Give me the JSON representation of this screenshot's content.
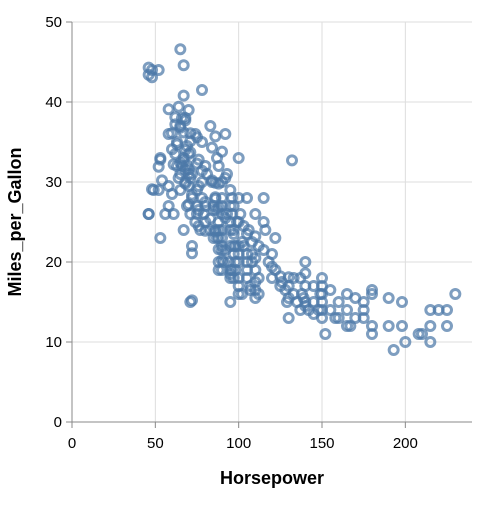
{
  "chart_data": {
    "type": "scatter",
    "title": "",
    "xlabel": "Horsepower",
    "ylabel": "Miles_per_Gallon",
    "xlim": [
      0,
      240
    ],
    "ylim": [
      0,
      50
    ],
    "x_ticks": [
      0,
      50,
      100,
      150,
      200
    ],
    "y_ticks": [
      0,
      10,
      20,
      30,
      40,
      50
    ],
    "x_tick_labels": [
      "0",
      "50",
      "100",
      "150",
      "200"
    ],
    "y_tick_labels": [
      "0",
      "10",
      "20",
      "30",
      "40",
      "50"
    ],
    "grid": true,
    "legend": "none",
    "colors": {
      "point": "#4c78a8",
      "grid": "#dddddd",
      "axis": "#888888"
    },
    "points": [
      [
        46,
        26
      ],
      [
        46,
        26
      ],
      [
        46,
        43.4
      ],
      [
        46,
        44.3
      ],
      [
        48,
        29.1
      ],
      [
        48,
        43.1
      ],
      [
        48,
        44.0
      ],
      [
        49,
        29.0
      ],
      [
        52,
        29.0
      ],
      [
        52,
        31.9
      ],
      [
        52,
        44.0
      ],
      [
        53,
        33.0
      ],
      [
        53,
        23.0
      ],
      [
        53,
        32.8
      ],
      [
        54,
        30.2
      ],
      [
        58,
        29.5
      ],
      [
        58,
        36.0
      ],
      [
        58,
        39.1
      ],
      [
        60,
        36.1
      ],
      [
        60,
        34.1
      ],
      [
        61,
        32.2
      ],
      [
        61,
        26.0
      ],
      [
        62,
        37.2
      ],
      [
        62,
        38.1
      ],
      [
        63,
        32.0
      ],
      [
        63,
        34.7
      ],
      [
        63,
        35.0
      ],
      [
        64,
        39.4
      ],
      [
        65,
        31.0
      ],
      [
        65,
        32.4
      ],
      [
        65,
        36.8
      ],
      [
        65,
        37.0
      ],
      [
        65,
        46.6
      ],
      [
        65,
        29.0
      ],
      [
        66,
        32.0
      ],
      [
        67,
        33.0
      ],
      [
        67,
        36.2
      ],
      [
        67,
        40.8
      ],
      [
        67,
        44.6
      ],
      [
        67,
        32.7
      ],
      [
        67,
        24.0
      ],
      [
        68,
        34.0
      ],
      [
        68,
        37.7
      ],
      [
        68,
        30.0
      ],
      [
        68,
        38.0
      ],
      [
        68,
        29.8
      ],
      [
        68,
        31.5
      ],
      [
        69,
        27.0
      ],
      [
        69,
        32.1
      ],
      [
        69,
        34.5
      ],
      [
        70,
        31.0
      ],
      [
        70,
        31.6
      ],
      [
        70,
        29.5
      ],
      [
        70,
        33.5
      ],
      [
        70,
        27.2
      ],
      [
        71,
        26.0
      ],
      [
        71,
        30.5
      ],
      [
        71,
        33.7
      ],
      [
        71,
        35.1
      ],
      [
        71,
        36.1
      ],
      [
        72,
        28.0
      ],
      [
        72,
        31.0
      ],
      [
        72,
        28.4
      ],
      [
        72,
        21.1
      ],
      [
        72,
        22.0
      ],
      [
        74,
        36.0
      ],
      [
        74,
        25.0
      ],
      [
        75,
        26.0
      ],
      [
        75,
        29.0
      ],
      [
        75,
        32.3
      ],
      [
        75,
        27.0
      ],
      [
        76,
        29.5
      ],
      [
        76,
        26.5
      ],
      [
        76,
        24.5
      ],
      [
        77,
        24.0
      ],
      [
        78,
        28.0
      ],
      [
        78,
        30.0
      ],
      [
        78,
        41.5
      ],
      [
        78,
        35.0
      ],
      [
        79,
        26.0
      ],
      [
        80,
        25.0
      ],
      [
        80,
        27.0
      ],
      [
        80,
        32.0
      ],
      [
        80,
        27.5
      ],
      [
        81,
        31.0
      ],
      [
        83,
        24.0
      ],
      [
        83,
        25.4
      ],
      [
        84,
        30.0
      ],
      [
        84,
        34.3
      ],
      [
        85,
        23.0
      ],
      [
        85,
        27.0
      ],
      [
        86,
        27.9
      ],
      [
        86,
        28.1
      ],
      [
        86,
        23.8
      ],
      [
        86,
        24.0
      ],
      [
        86,
        29.9
      ],
      [
        87,
        23.0
      ],
      [
        87,
        26.5
      ],
      [
        88,
        24.0
      ],
      [
        88,
        19.0
      ],
      [
        88,
        25.0
      ],
      [
        88,
        23.0
      ],
      [
        88,
        20.0
      ],
      [
        88,
        21.6
      ],
      [
        88,
        26.8
      ],
      [
        88,
        29.8
      ],
      [
        90,
        19.0
      ],
      [
        90,
        27.0
      ],
      [
        90,
        23.0
      ],
      [
        90,
        28.0
      ],
      [
        90,
        24.0
      ],
      [
        90,
        22.0
      ],
      [
        90,
        26.0
      ],
      [
        90,
        33.8
      ],
      [
        90,
        20.2
      ],
      [
        91,
        20.0
      ],
      [
        92,
        21.5
      ],
      [
        92,
        25.5
      ],
      [
        93,
        26.0
      ],
      [
        94,
        20.0
      ],
      [
        95,
        24.0
      ],
      [
        95,
        27.0
      ],
      [
        95,
        22.0
      ],
      [
        95,
        18.0
      ],
      [
        95,
        19.0
      ],
      [
        95,
        25.0
      ],
      [
        95,
        15.0
      ],
      [
        96,
        26.0
      ],
      [
        96,
        19.0
      ],
      [
        97,
        22.0
      ],
      [
        97,
        23.5
      ],
      [
        97,
        21.0
      ],
      [
        97,
        24.0
      ],
      [
        97,
        18.0
      ],
      [
        97,
        27.0
      ],
      [
        98,
        20.0
      ],
      [
        98,
        19.0
      ],
      [
        100,
        18.0
      ],
      [
        100,
        20.0
      ],
      [
        100,
        16.0
      ],
      [
        100,
        21.0
      ],
      [
        100,
        22.0
      ],
      [
        100,
        28.0
      ],
      [
        100,
        33.0
      ],
      [
        102,
        16.0
      ],
      [
        103,
        24.5
      ],
      [
        105,
        18.0
      ],
      [
        105,
        19.0
      ],
      [
        105,
        20.0
      ],
      [
        105,
        23.5
      ],
      [
        105,
        28.0
      ],
      [
        107,
        17.0
      ],
      [
        107,
        16.5
      ],
      [
        108,
        21.0
      ],
      [
        108,
        22.5
      ],
      [
        110,
        19.0
      ],
      [
        110,
        20.5
      ],
      [
        110,
        23.2
      ],
      [
        110,
        15.5
      ],
      [
        110,
        26.0
      ],
      [
        110,
        17.5
      ],
      [
        112,
        16.0
      ],
      [
        112,
        18.0
      ],
      [
        115,
        21.5
      ],
      [
        115,
        25.0
      ],
      [
        115,
        28.0
      ],
      [
        116,
        24.0
      ],
      [
        120,
        18.0
      ],
      [
        120,
        19.4
      ],
      [
        120,
        21.0
      ],
      [
        122,
        23.0
      ],
      [
        125,
        17.0
      ],
      [
        125,
        18.2
      ],
      [
        129,
        15.0
      ],
      [
        130,
        17.0
      ],
      [
        130,
        18.1
      ],
      [
        130,
        15.5
      ],
      [
        130,
        13.0
      ],
      [
        132,
        32.7
      ],
      [
        133,
        18.0
      ],
      [
        135,
        15.0
      ],
      [
        137,
        14.0
      ],
      [
        138,
        16.0
      ],
      [
        139,
        15.5
      ],
      [
        140,
        14.5
      ],
      [
        140,
        17.0
      ],
      [
        140,
        18.6
      ],
      [
        140,
        15.0
      ],
      [
        140,
        20.0
      ],
      [
        142,
        14.0
      ],
      [
        145,
        15.0
      ],
      [
        145,
        13.5
      ],
      [
        148,
        14.0
      ],
      [
        149,
        16.0
      ],
      [
        150,
        13.0
      ],
      [
        150,
        14.0
      ],
      [
        150,
        15.0
      ],
      [
        150,
        16.0
      ],
      [
        150,
        17.0
      ],
      [
        152,
        11.0
      ],
      [
        155,
        14.0
      ],
      [
        155,
        16.5
      ],
      [
        158,
        13.0
      ],
      [
        160,
        13.0
      ],
      [
        165,
        12.0
      ],
      [
        165,
        14.0
      ],
      [
        167,
        12.0
      ],
      [
        170,
        15.5
      ],
      [
        170,
        13.0
      ],
      [
        175,
        13.0
      ],
      [
        175,
        14.0
      ],
      [
        180,
        11.0
      ],
      [
        180,
        12.0
      ],
      [
        180,
        16.5
      ],
      [
        180,
        16.0
      ],
      [
        190,
        12.0
      ],
      [
        190,
        15.5
      ],
      [
        193,
        9.0
      ],
      [
        198,
        12.0
      ],
      [
        198,
        15.0
      ],
      [
        200,
        10.0
      ],
      [
        208,
        11.0
      ],
      [
        210,
        11.0
      ],
      [
        215,
        12.0
      ],
      [
        215,
        10.0
      ],
      [
        215,
        14.0
      ],
      [
        220,
        14.0
      ],
      [
        225,
        12.0
      ],
      [
        225,
        14.0
      ],
      [
        230,
        16.0
      ],
      [
        95,
        29.0
      ],
      [
        90,
        30.0
      ],
      [
        86,
        35.7
      ],
      [
        84,
        30.2
      ],
      [
        92,
        36.0
      ],
      [
        76,
        32.8
      ],
      [
        78,
        31.4
      ],
      [
        75,
        35.6
      ],
      [
        98,
        22.0
      ],
      [
        100,
        25.0
      ],
      [
        105,
        21.0
      ],
      [
        85,
        26.5
      ],
      [
        80,
        23.9
      ],
      [
        90,
        21.5
      ],
      [
        101,
        26.0
      ],
      [
        102,
        22.5
      ],
      [
        106,
        24.0
      ],
      [
        112,
        22.0
      ],
      [
        118,
        20.0
      ],
      [
        122,
        19.0
      ],
      [
        126,
        17.5
      ],
      [
        128,
        16.5
      ],
      [
        133,
        16.0
      ],
      [
        137,
        18.0
      ],
      [
        145,
        17.0
      ],
      [
        150,
        18.0
      ],
      [
        160,
        15.0
      ],
      [
        165,
        16.0
      ],
      [
        175,
        15.0
      ],
      [
        71,
        15.0
      ],
      [
        72,
        15.2
      ],
      [
        95,
        18.5
      ],
      [
        100,
        17.0
      ],
      [
        110,
        16.5
      ],
      [
        92,
        30.5
      ],
      [
        88,
        32.0
      ],
      [
        70,
        39.0
      ],
      [
        66,
        38.0
      ],
      [
        62,
        33.5
      ],
      [
        58,
        27.0
      ],
      [
        56,
        26.0
      ],
      [
        60,
        28.5
      ],
      [
        64,
        30.5
      ],
      [
        83,
        37.0
      ],
      [
        87,
        33.0
      ],
      [
        93,
        31.0
      ],
      [
        96,
        28.0
      ],
      [
        99,
        25.0
      ],
      [
        103,
        22.0
      ],
      [
        108,
        20.0
      ]
    ]
  },
  "icons": []
}
